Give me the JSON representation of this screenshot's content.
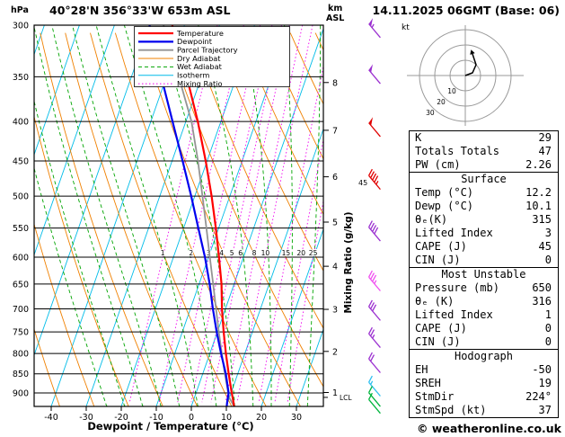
{
  "header": {
    "station": "40°28'N 356°33'W 653m ASL",
    "datetime": "14.11.2025 06GMT (Base: 06)"
  },
  "footer": {
    "credit": "© weatheronline.co.uk"
  },
  "chart_data": {
    "type": "skewt-log-p-sounding",
    "title": "40°28'N 356°33'W 653m ASL",
    "xlabel": "Dewpoint / Temperature (°C)",
    "pressure_axis_label": "hPa",
    "altitude_unit": "km",
    "altitude_ref": "ASL",
    "mixing_ratio_axis_label": "Mixing Ratio (g/kg)",
    "lcl_label": "LCL",
    "lcl_pressure": 912,
    "pressure_range": [
      300,
      937
    ],
    "pressure_ticks": [
      300,
      350,
      400,
      450,
      500,
      550,
      600,
      650,
      700,
      750,
      800,
      850,
      900
    ],
    "temp_ticks": [
      -40,
      -30,
      -20,
      -10,
      0,
      10,
      20,
      30
    ],
    "km_ticks": [
      1,
      2,
      3,
      4,
      5,
      6,
      7,
      8
    ],
    "isotherm_step": 10,
    "mixing_ratio_lines": [
      1,
      2,
      3,
      4,
      5,
      6,
      8,
      10,
      15,
      20,
      25
    ],
    "mixing_ratio_label_pressure": 600,
    "colors": {
      "temperature": "#ff0000",
      "dewpoint": "#0000ee",
      "parcel": "#949494",
      "dry_adiabat": "#f08000",
      "wet_adiabat": "#00a400",
      "isotherm": "#00bce8",
      "mixing_ratio": "#f000f0",
      "grid": "#000000"
    },
    "legend": [
      {
        "label": "Temperature",
        "color": "#ff0000",
        "width": 2.2,
        "dash": ""
      },
      {
        "label": "Dewpoint",
        "color": "#0000ee",
        "width": 2.2,
        "dash": ""
      },
      {
        "label": "Parcel Trajectory",
        "color": "#949494",
        "width": 1.8,
        "dash": ""
      },
      {
        "label": "Dry Adiabat",
        "color": "#f08000",
        "width": 1,
        "dash": ""
      },
      {
        "label": "Wet Adiabat",
        "color": "#00a400",
        "width": 1,
        "dash": "4 3"
      },
      {
        "label": "Isotherm",
        "color": "#00bce8",
        "width": 1,
        "dash": ""
      },
      {
        "label": "Mixing Ratio",
        "color": "#f000f0",
        "width": 1,
        "dash": "1.5 2.5"
      }
    ],
    "temperature_profile": [
      [
        937,
        12.2
      ],
      [
        925,
        11.6
      ],
      [
        900,
        10.2
      ],
      [
        850,
        7.4
      ],
      [
        800,
        4.6
      ],
      [
        750,
        1.8
      ],
      [
        700,
        -1.0
      ],
      [
        650,
        -3.6
      ],
      [
        600,
        -7.0
      ],
      [
        550,
        -10.8
      ],
      [
        500,
        -15.2
      ],
      [
        450,
        -20.4
      ],
      [
        400,
        -26.6
      ],
      [
        350,
        -34.2
      ],
      [
        300,
        -43.5
      ]
    ],
    "dewpoint_profile": [
      [
        937,
        10.1
      ],
      [
        925,
        9.8
      ],
      [
        900,
        9.3
      ],
      [
        850,
        6.6
      ],
      [
        800,
        3.2
      ],
      [
        750,
        -0.2
      ],
      [
        700,
        -3.6
      ],
      [
        650,
        -7.0
      ],
      [
        600,
        -11.0
      ],
      [
        550,
        -15.8
      ],
      [
        500,
        -21.0
      ],
      [
        450,
        -27.0
      ],
      [
        400,
        -33.8
      ],
      [
        350,
        -41.5
      ],
      [
        300,
        -50.0
      ]
    ],
    "parcel_profile": [
      [
        937,
        12.2
      ],
      [
        912,
        9.9
      ],
      [
        900,
        9.2
      ],
      [
        850,
        6.3
      ],
      [
        800,
        3.4
      ],
      [
        750,
        0.4
      ],
      [
        700,
        -2.7
      ],
      [
        650,
        -6.0
      ],
      [
        600,
        -9.6
      ],
      [
        550,
        -13.5
      ],
      [
        500,
        -17.8
      ],
      [
        450,
        -22.6
      ],
      [
        400,
        -28.4
      ],
      [
        350,
        -36.5
      ],
      [
        300,
        -46.0
      ]
    ],
    "wind_barbs": [
      {
        "p": 305,
        "kt": 55,
        "color": "#9b30d0",
        "label": ""
      },
      {
        "p": 350,
        "kt": 50,
        "color": "#9b30d0",
        "label": ""
      },
      {
        "p": 410,
        "kt": 50,
        "color": "#e00000",
        "label": ""
      },
      {
        "p": 480,
        "kt": 45,
        "color": "#e00000",
        "label": "45"
      },
      {
        "p": 560,
        "kt": 40,
        "color": "#9b30d0",
        "label": ""
      },
      {
        "p": 650,
        "kt": 35,
        "color": "#f050f0",
        "label": ""
      },
      {
        "p": 710,
        "kt": 30,
        "color": "#9b30d0",
        "label": ""
      },
      {
        "p": 770,
        "kt": 25,
        "color": "#9b30d0",
        "label": ""
      },
      {
        "p": 830,
        "kt": 20,
        "color": "#9b30d0",
        "label": ""
      },
      {
        "p": 890,
        "kt": 15,
        "color": "#30c0f0",
        "label": ""
      },
      {
        "p": 918,
        "kt": 12,
        "color": "#00b43c",
        "label": ""
      },
      {
        "p": 937,
        "kt": 10,
        "color": "#00b43c",
        "label": ""
      }
    ]
  },
  "hodograph": {
    "unit": "kt",
    "ring_step_kt": 10,
    "ring_labels": [
      "10",
      "20",
      "30"
    ],
    "trace": [
      [
        0,
        0
      ],
      [
        8,
        -3
      ],
      [
        12,
        -12
      ],
      [
        8,
        -24
      ]
    ]
  },
  "tables": [
    {
      "header": "",
      "rows": [
        [
          "K",
          "29"
        ],
        [
          "Totals Totals",
          "47"
        ],
        [
          "PW (cm)",
          "2.26"
        ]
      ]
    },
    {
      "header": "Surface",
      "rows": [
        [
          "Temp (°C)",
          "12.2"
        ],
        [
          "Dewp (°C)",
          "10.1"
        ],
        [
          "θₑ(K)",
          "315"
        ],
        [
          "Lifted Index",
          "3"
        ],
        [
          "CAPE (J)",
          "45"
        ],
        [
          "CIN (J)",
          "0"
        ]
      ]
    },
    {
      "header": "Most Unstable",
      "rows": [
        [
          "Pressure (mb)",
          "650"
        ],
        [
          "θₑ (K)",
          "316"
        ],
        [
          "Lifted Index",
          "1"
        ],
        [
          "CAPE (J)",
          "0"
        ],
        [
          "CIN (J)",
          "0"
        ]
      ]
    },
    {
      "header": "Hodograph",
      "rows": [
        [
          "EH",
          "-50"
        ],
        [
          "SREH",
          "19"
        ],
        [
          "StmDir",
          "224°"
        ],
        [
          "StmSpd (kt)",
          "37"
        ]
      ]
    }
  ]
}
